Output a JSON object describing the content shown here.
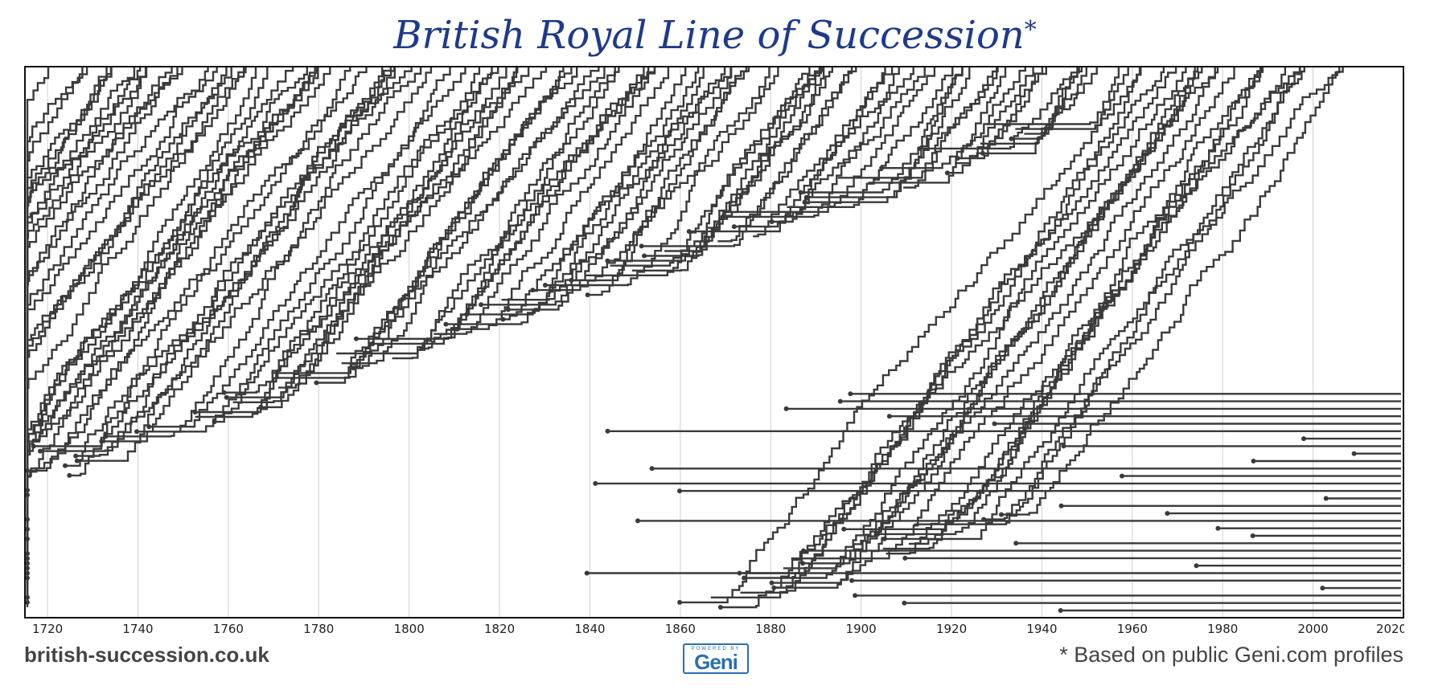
{
  "title": "British Royal Line of Succession",
  "title_mark": "*",
  "footer": {
    "site": "british-succession.co.uk",
    "note": "* Based on public Geni.com profiles",
    "logo_small": "POWERED BY",
    "logo_big": "Geni"
  },
  "chart_data": {
    "type": "line",
    "title": "British Royal Line of Succession",
    "xlabel": "",
    "ylabel": "",
    "xlim": [
      1715,
      2020
    ],
    "x_ticks": [
      1720,
      1740,
      1760,
      1780,
      1800,
      1820,
      1840,
      1860,
      1880,
      1900,
      1920,
      1940,
      1960,
      1980,
      2000,
      2020
    ],
    "grid": "vertical",
    "line_color": "#3a3a3a",
    "description": "Dense stepped lines; each line is a person's position in the line of succession over time. Lines step downward toward the bottom of the chart as people move up in line; dots mark births and deaths.",
    "n_series_approx": 120
  }
}
